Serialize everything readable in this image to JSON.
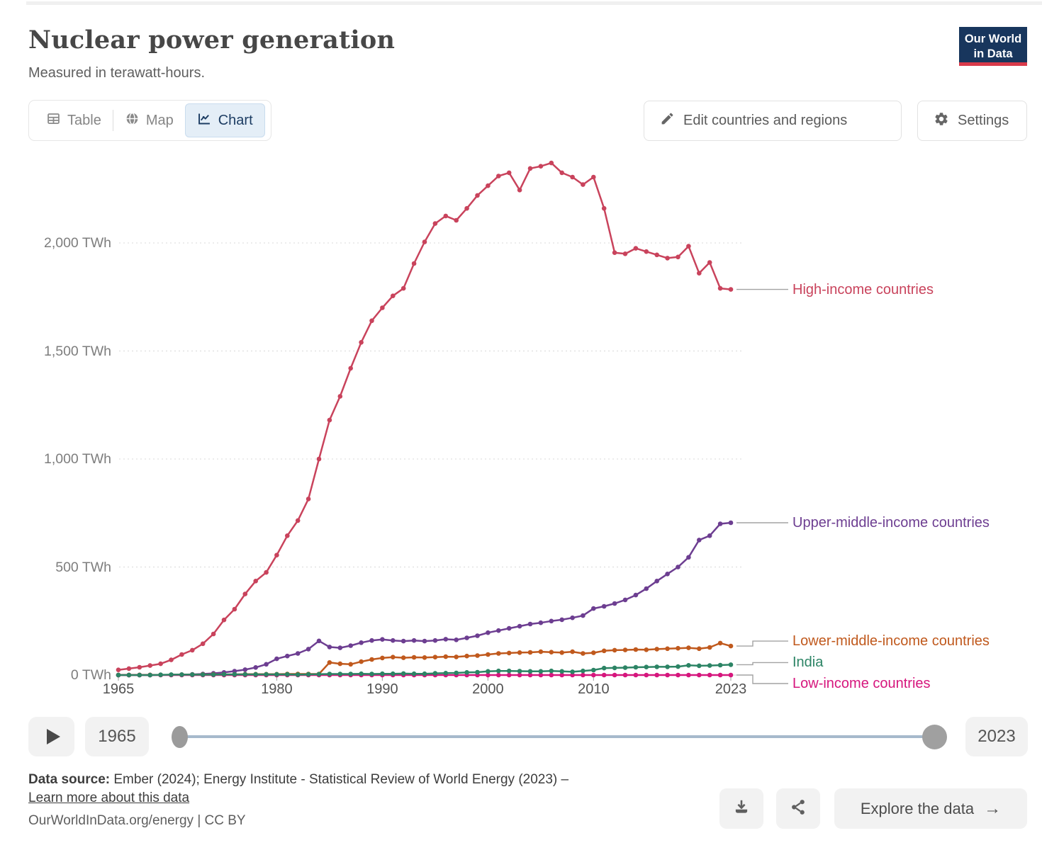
{
  "header": {
    "title": "Nuclear power generation",
    "subtitle": "Measured in terawatt-hours."
  },
  "logo": {
    "line1": "Our World",
    "line2": "in Data",
    "bg_color": "#18365d",
    "bar_color": "#d93a4a"
  },
  "tabs": [
    {
      "label": "Table",
      "icon": "table-grid-icon",
      "active": false
    },
    {
      "label": "Map",
      "icon": "globe-icon",
      "active": false
    },
    {
      "label": "Chart",
      "icon": "line-chart-icon",
      "active": true
    }
  ],
  "toolbar": {
    "edit_label": "Edit countries and regions",
    "settings_label": "Settings"
  },
  "chart_data": {
    "type": "line",
    "title": "Nuclear power generation",
    "unit": "TWh",
    "years": [
      1965,
      1966,
      1967,
      1968,
      1969,
      1970,
      1971,
      1972,
      1973,
      1974,
      1975,
      1976,
      1977,
      1978,
      1979,
      1980,
      1981,
      1982,
      1983,
      1984,
      1985,
      1986,
      1987,
      1988,
      1989,
      1990,
      1991,
      1992,
      1993,
      1994,
      1995,
      1996,
      1997,
      1998,
      1999,
      2000,
      2001,
      2002,
      2003,
      2004,
      2005,
      2006,
      2007,
      2008,
      2009,
      2010,
      2011,
      2012,
      2013,
      2014,
      2015,
      2016,
      2017,
      2018,
      2019,
      2020,
      2021,
      2022,
      2023
    ],
    "x_ticks": [
      1965,
      1980,
      1990,
      2000,
      2010,
      2023
    ],
    "y_ticks": [
      0,
      500,
      1000,
      1500,
      2000
    ],
    "y_tick_suffix": " TWh",
    "ylim": [
      0,
      2430
    ],
    "grid": true,
    "legend_position": "right-edge-labels",
    "series": [
      {
        "name": "High-income countries",
        "color": "#c9435c",
        "values": [
          24,
          30,
          36,
          44,
          52,
          70,
          95,
          115,
          145,
          190,
          255,
          305,
          375,
          435,
          475,
          555,
          645,
          715,
          815,
          1000,
          1180,
          1290,
          1420,
          1540,
          1640,
          1700,
          1755,
          1790,
          1905,
          2005,
          2090,
          2125,
          2105,
          2160,
          2220,
          2265,
          2310,
          2325,
          2245,
          2345,
          2355,
          2370,
          2325,
          2305,
          2270,
          2305,
          2160,
          1955,
          1950,
          1975,
          1960,
          1945,
          1930,
          1935,
          1985,
          1860,
          1910,
          1790,
          1785
        ]
      },
      {
        "name": "Upper-middle-income countries",
        "color": "#6d3e91",
        "values": [
          0,
          0,
          0,
          0,
          1,
          1,
          2,
          3,
          5,
          8,
          12,
          18,
          25,
          35,
          50,
          75,
          88,
          100,
          120,
          158,
          130,
          126,
          136,
          150,
          160,
          165,
          160,
          157,
          160,
          157,
          160,
          166,
          163,
          172,
          182,
          196,
          206,
          216,
          226,
          236,
          242,
          250,
          256,
          265,
          275,
          308,
          318,
          331,
          348,
          370,
          400,
          435,
          468,
          500,
          545,
          625,
          645,
          700,
          705
        ]
      },
      {
        "name": "Lower-middle-income countries",
        "color": "#c0591d",
        "values": [
          0.3,
          0.4,
          0.5,
          0.6,
          0.8,
          1,
          1.5,
          2,
          2.5,
          3,
          3,
          3,
          4,
          4,
          4,
          4,
          5,
          5,
          5,
          5,
          58,
          52,
          50,
          62,
          72,
          79,
          83,
          80,
          82,
          81,
          83,
          85,
          84,
          88,
          90,
          95,
          100,
          102,
          104,
          105,
          108,
          106,
          104,
          108,
          100,
          103,
          112,
          115,
          116,
          118,
          117,
          120,
          122,
          124,
          126,
          122,
          128,
          148,
          134
        ]
      },
      {
        "name": "Low-income countries",
        "color": "#d6167d",
        "values": [
          0,
          0,
          0,
          0,
          0,
          0,
          0,
          0,
          0,
          0,
          0,
          0,
          0,
          0,
          0,
          0,
          0,
          0,
          0,
          0,
          0,
          0,
          0,
          0,
          0,
          0,
          0,
          0,
          0,
          0,
          0,
          0,
          0,
          0,
          0,
          0,
          0,
          0,
          0,
          0,
          0,
          0,
          0,
          0,
          0,
          0,
          0,
          0,
          0,
          0,
          0,
          0,
          0,
          0,
          0,
          0,
          0,
          0,
          0
        ]
      },
      {
        "name": "India",
        "color": "#2c8465",
        "values": [
          0,
          0,
          0,
          0,
          1,
          2,
          2,
          2,
          2,
          2,
          3,
          3,
          3,
          3,
          3,
          3,
          3,
          2,
          3,
          4,
          5,
          5,
          5,
          6,
          5,
          6,
          6,
          7,
          6,
          6,
          8,
          9,
          10,
          12,
          13,
          17,
          19,
          19,
          18,
          17,
          17,
          19,
          17,
          15,
          19,
          23,
          32,
          33,
          34,
          36,
          37,
          38,
          38,
          39,
          45,
          43,
          44,
          46,
          48
        ]
      }
    ]
  },
  "timeline": {
    "start_year": "1965",
    "end_year": "2023"
  },
  "footer": {
    "source_label": "Data source:",
    "source_text": " Ember (2024); Energy Institute - Statistical Review of World Energy (2023) –",
    "learn_more": "Learn more about this data",
    "attribution": "OurWorldInData.org/energy | CC BY",
    "explore_label": "Explore the data",
    "explore_arrow": "→",
    "icons": [
      "download-icon",
      "share-icon"
    ]
  }
}
